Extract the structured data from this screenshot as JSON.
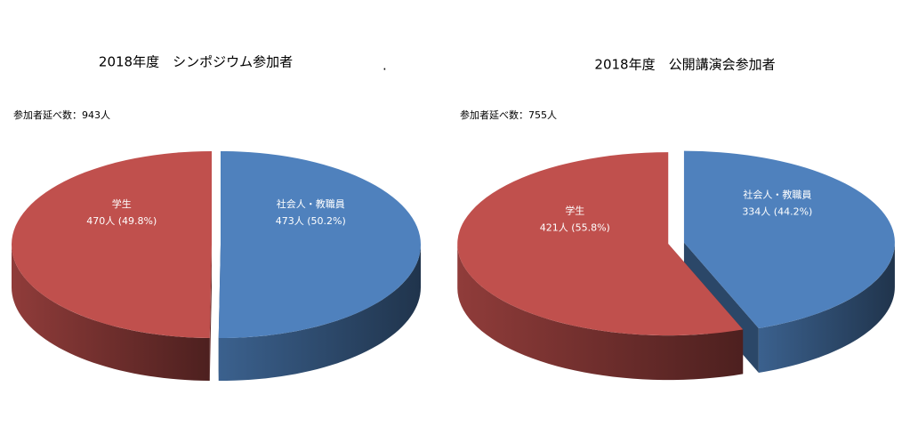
{
  "chart_data": [
    {
      "type": "pie3d",
      "title": "2018年度　シンポジウム参加者",
      "subtitle": "参加者延べ数：943人",
      "annotation": ".",
      "categories": [
        "社会人・教職員",
        "学生"
      ],
      "values": [
        473,
        470
      ],
      "value_labels": [
        "473人 (50.2%)",
        "470人 (49.8%)"
      ],
      "colors": [
        "#4f81bd",
        "#c0504d"
      ]
    },
    {
      "type": "pie3d",
      "title": "2018年度　公開講演会参加者",
      "subtitle": "参加者延べ数：755人",
      "categories": [
        "社会人・教職員",
        "学生"
      ],
      "values": [
        334,
        421
      ],
      "value_labels": [
        "334人 (44.2%)",
        "421人 (55.8%)"
      ],
      "colors": [
        "#4f81bd",
        "#c0504d"
      ]
    }
  ]
}
